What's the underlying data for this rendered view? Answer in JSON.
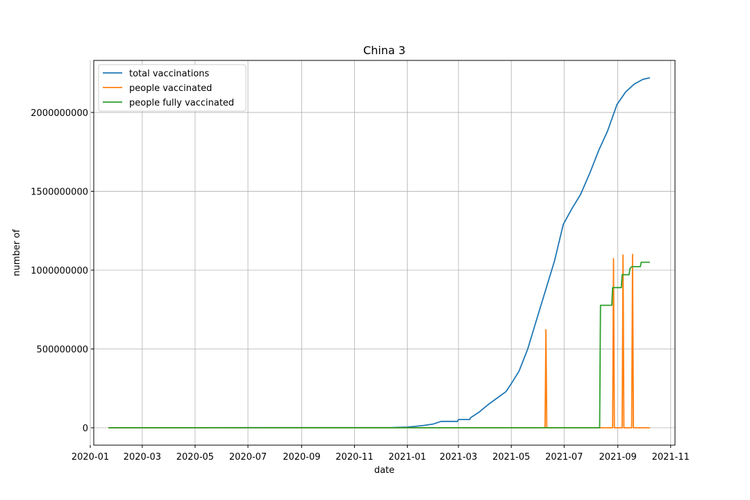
{
  "chart_data": {
    "type": "line",
    "title": "China 3",
    "xlabel": "date",
    "ylabel": "number of",
    "x_ticks": [
      "2020-01",
      "2020-03",
      "2020-05",
      "2020-07",
      "2020-09",
      "2020-11",
      "2021-01",
      "2021-03",
      "2021-05",
      "2021-07",
      "2021-09",
      "2021-11"
    ],
    "y_ticks": [
      0,
      500000000,
      1000000000,
      1500000000,
      2000000000
    ],
    "y_tick_labels": [
      "0",
      "500000000",
      "1000000000",
      "1500000000",
      "2000000000"
    ],
    "xlim": [
      "2020-01-05",
      "2021-11-06"
    ],
    "ylim": [
      -110000000,
      2330000000
    ],
    "grid": true,
    "legend_position": "top-left",
    "colors": {
      "total": "#1f77b4",
      "people": "#ff7f0e",
      "fully": "#2ca02c"
    },
    "series": [
      {
        "name": "total vaccinations",
        "color": "#1f77b4",
        "points": [
          [
            "2020-01-22",
            0
          ],
          [
            "2020-12-15",
            1500000
          ],
          [
            "2021-01-01",
            4500000
          ],
          [
            "2021-01-10",
            9000000
          ],
          [
            "2021-01-20",
            15000000
          ],
          [
            "2021-01-31",
            24000000
          ],
          [
            "2021-02-09",
            40500000
          ],
          [
            "2021-02-28",
            40500000
          ],
          [
            "2021-03-01",
            52500000
          ],
          [
            "2021-03-14",
            52500000
          ],
          [
            "2021-03-15",
            64000000
          ],
          [
            "2021-03-25",
            100000000
          ],
          [
            "2021-04-05",
            150000000
          ],
          [
            "2021-04-15",
            190000000
          ],
          [
            "2021-04-25",
            230000000
          ],
          [
            "2021-05-01",
            280000000
          ],
          [
            "2021-05-10",
            360000000
          ],
          [
            "2021-05-20",
            500000000
          ],
          [
            "2021-05-31",
            700000000
          ],
          [
            "2021-06-10",
            880000000
          ],
          [
            "2021-06-20",
            1060000000
          ],
          [
            "2021-06-30",
            1290000000
          ],
          [
            "2021-07-10",
            1390000000
          ],
          [
            "2021-07-20",
            1480000000
          ],
          [
            "2021-07-31",
            1620000000
          ],
          [
            "2021-08-10",
            1760000000
          ],
          [
            "2021-08-20",
            1880000000
          ],
          [
            "2021-08-31",
            2050000000
          ],
          [
            "2021-09-10",
            2130000000
          ],
          [
            "2021-09-20",
            2180000000
          ],
          [
            "2021-09-30",
            2210000000
          ],
          [
            "2021-10-08",
            2220000000
          ]
        ]
      },
      {
        "name": "people vaccinated",
        "color": "#ff7f0e",
        "points": [
          [
            "2020-01-22",
            0
          ],
          [
            "2021-06-09",
            0
          ],
          [
            "2021-06-10",
            622000000
          ],
          [
            "2021-06-11",
            0
          ],
          [
            "2021-08-26",
            0
          ],
          [
            "2021-08-27",
            1073000000
          ],
          [
            "2021-08-28",
            0
          ],
          [
            "2021-09-06",
            0
          ],
          [
            "2021-09-07",
            1096000000
          ],
          [
            "2021-09-08",
            0
          ],
          [
            "2021-09-17",
            0
          ],
          [
            "2021-09-18",
            1100000000
          ],
          [
            "2021-09-19",
            0
          ],
          [
            "2021-10-08",
            0
          ]
        ]
      },
      {
        "name": "people fully vaccinated",
        "color": "#2ca02c",
        "points": [
          [
            "2020-01-22",
            0
          ],
          [
            "2021-08-11",
            0
          ],
          [
            "2021-08-12",
            777000000
          ],
          [
            "2021-08-25",
            777000000
          ],
          [
            "2021-08-26",
            889000000
          ],
          [
            "2021-09-05",
            889000000
          ],
          [
            "2021-09-06",
            971000000
          ],
          [
            "2021-09-14",
            971000000
          ],
          [
            "2021-09-15",
            1010000000
          ],
          [
            "2021-09-17",
            1022000000
          ],
          [
            "2021-09-27",
            1022000000
          ],
          [
            "2021-09-28",
            1050000000
          ],
          [
            "2021-10-08",
            1050000000
          ]
        ]
      }
    ]
  }
}
